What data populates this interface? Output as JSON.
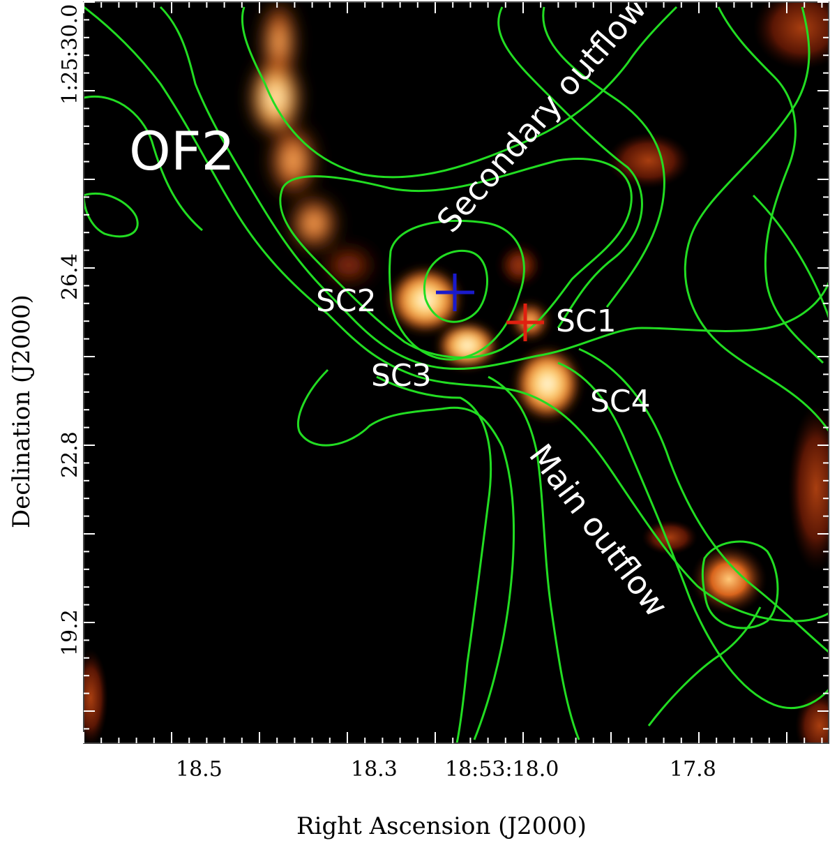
{
  "figure": {
    "label": "OF2",
    "x_axis_title": "Right Ascension (J2000)",
    "y_axis_title": "Declination (J2000)",
    "x_tick_labels": [
      "18.5",
      "18.3",
      "18:53:18.0",
      "17.8"
    ],
    "y_tick_labels": [
      "1:25:30.0",
      "26.4",
      "22.8",
      "19.2"
    ],
    "annotations": {
      "sc1": "SC1",
      "sc2": "SC2",
      "sc3": "SC3",
      "sc4": "SC4",
      "secondary_outflow": "Secondary outflow",
      "main_outflow": "Main outflow"
    },
    "colors": {
      "contours": "#22dd22",
      "marker_blue": "#1a1acc",
      "marker_red": "#e02010",
      "background": "#000000"
    }
  }
}
